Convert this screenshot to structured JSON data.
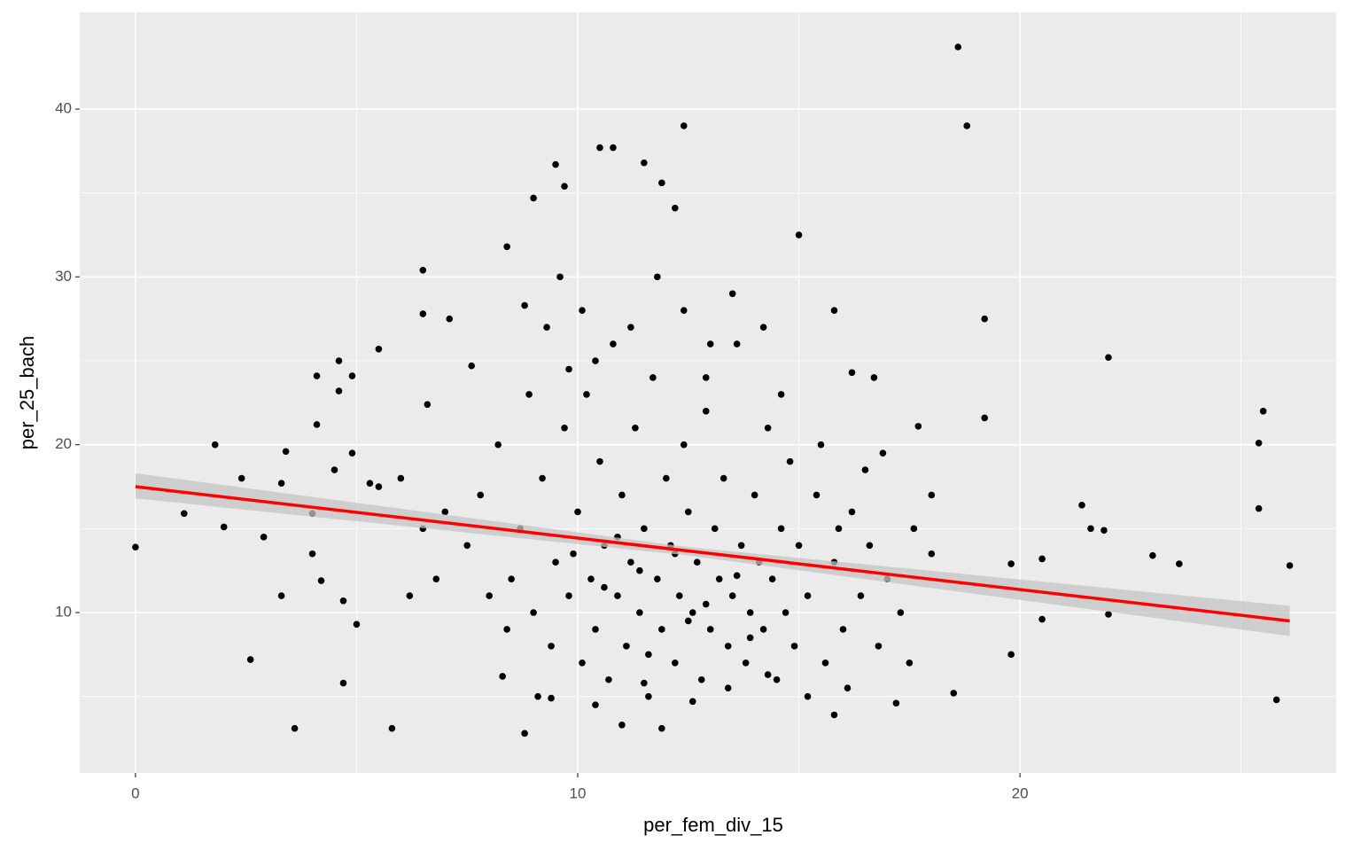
{
  "chart_data": {
    "type": "scatter",
    "x_label": "per_fem_div_15",
    "y_label": "per_25_bach",
    "xlim": [
      -1.26,
      27.15
    ],
    "ylim": [
      0.44,
      45.76
    ],
    "xticks": [
      0,
      10,
      20
    ],
    "yticks": [
      10,
      20,
      30,
      40
    ],
    "x_minor_ticks": [
      5,
      15,
      25
    ],
    "y_minor_ticks": [
      5,
      15,
      25,
      35
    ],
    "grid": true,
    "background": "#ebebeb",
    "points": {
      "color": "#000000",
      "x": [
        0,
        1.1,
        1.8,
        2,
        2.4,
        2.6,
        2.9,
        3.3,
        3.3,
        3.4,
        3.6,
        4,
        4,
        4.1,
        4.2,
        4.1,
        4.5,
        4.6,
        4.6,
        4.7,
        4.7,
        4.9,
        4.9,
        5,
        5.3,
        5.5,
        5.5,
        5.8,
        6.5,
        6.5,
        6.6,
        7.1,
        7.6,
        8.4,
        8.8,
        8.8,
        9,
        9.5,
        9.7,
        10.5,
        10.8,
        11.5,
        11.9,
        12.4,
        12.2,
        15,
        15.8,
        15.8,
        18.6,
        18.8,
        19.2,
        19.2,
        19.8,
        19.8,
        20.5,
        20.5,
        21.4,
        21.6,
        21.9,
        22,
        22,
        23,
        23.6,
        25.4,
        25.5,
        25.4,
        25.8,
        26.1,
        18.5,
        18,
        17.7,
        16.7,
        16.2,
        17.2,
        11.9,
        9.4,
        11,
        8.5,
        8.7,
        9,
        9.2,
        9.4,
        9.5,
        9.7,
        9.8,
        10,
        10.1,
        10.2,
        10.3,
        10.4,
        10.5,
        10.6,
        10.7,
        10.8,
        10.9,
        11,
        11.1,
        11.2,
        11.3,
        11.4,
        11.5,
        11.6,
        11.7,
        11.8,
        11.9,
        12,
        12.1,
        12.2,
        12.3,
        12.4,
        12.5,
        12.6,
        12.7,
        12.8,
        12.9,
        13,
        13.1,
        13.2,
        13.3,
        13.4,
        13.5,
        13.6,
        13.7,
        13.8,
        13.9,
        14,
        14.1,
        14.2,
        14.3,
        14.4,
        14.5,
        14.6,
        14.7,
        14.8,
        14.9,
        15,
        15.2,
        15.4,
        15.6,
        15.8,
        16,
        16.2,
        16.4,
        16.6,
        16.8,
        17,
        17.3,
        7.5,
        7.8,
        8,
        8.2,
        8.4,
        7,
        6.8,
        6.5,
        6.2,
        6,
        9.3,
        9.6,
        10.1,
        10.4,
        11.2,
        11.8,
        12.4,
        13,
        13.5,
        14.2,
        9.1,
        10.4,
        11.5,
        12.6,
        13.4,
        14.3,
        15.2,
        16.1,
        8.3,
        17.5,
        10.6,
        11.4,
        12.2,
        12.9,
        13.6,
        10.9,
        12.5,
        11.6,
        13.9,
        9.9,
        15.5,
        16.5,
        15.9,
        17.6,
        18,
        8.9,
        9.8,
        12.9,
        14.6,
        16.9
      ],
      "y": [
        13.9,
        15.9,
        20,
        15.1,
        18,
        7.2,
        14.5,
        17.7,
        11,
        19.6,
        3.1,
        15.9,
        13.5,
        24.1,
        11.9,
        21.2,
        18.5,
        25,
        23.2,
        10.7,
        5.8,
        24.1,
        19.5,
        9.3,
        17.7,
        17.5,
        25.7,
        3.1,
        30.4,
        27.8,
        22.4,
        27.5,
        24.7,
        31.8,
        2.8,
        28.3,
        34.7,
        36.7,
        35.4,
        37.7,
        37.7,
        36.8,
        35.6,
        39,
        34.1,
        32.5,
        28,
        3.9,
        43.7,
        39,
        27.5,
        21.6,
        12.9,
        7.5,
        9.6,
        13.2,
        16.4,
        15,
        14.9,
        25.2,
        9.9,
        13.4,
        12.9,
        20.1,
        22,
        16.2,
        4.8,
        12.8,
        5.2,
        17,
        21.1,
        24,
        24.3,
        4.6,
        3.1,
        4.9,
        3.3,
        12,
        15,
        10,
        18,
        8,
        13,
        21,
        11,
        16,
        7,
        23,
        12,
        9,
        19,
        14,
        6,
        26,
        11,
        17,
        8,
        13,
        21,
        10,
        15,
        5,
        24,
        12,
        9,
        18,
        14,
        7,
        11,
        20,
        16,
        10,
        13,
        6,
        22,
        9,
        15,
        12,
        18,
        8,
        11,
        26,
        14,
        7,
        10,
        17,
        13,
        9,
        21,
        12,
        6,
        15,
        10,
        19,
        8,
        14,
        11,
        17,
        7,
        13,
        9,
        16,
        11,
        14,
        8,
        12,
        10,
        14,
        17,
        11,
        20,
        9,
        16,
        12,
        15,
        11,
        18,
        27,
        30,
        28,
        25,
        27,
        30,
        28,
        26,
        29,
        27,
        5,
        4.5,
        5.8,
        4.7,
        5.5,
        6.3,
        5,
        5.5,
        6.2,
        7,
        11.5,
        12.5,
        13.5,
        10.5,
        12.2,
        14.5,
        9.5,
        7.5,
        8.5,
        13.5,
        20,
        18.5,
        15,
        15,
        13.5,
        23,
        24.5,
        24,
        23,
        19.5
      ]
    },
    "fit": {
      "color": "#ff0000",
      "band_color": "#c4c4c4",
      "x": [
        0,
        12.5,
        26.1
      ],
      "y": [
        17.5,
        13.67,
        9.5
      ],
      "lower": [
        16.8,
        13.4,
        8.6
      ],
      "upper": [
        18.3,
        13.9,
        10.4
      ]
    }
  }
}
